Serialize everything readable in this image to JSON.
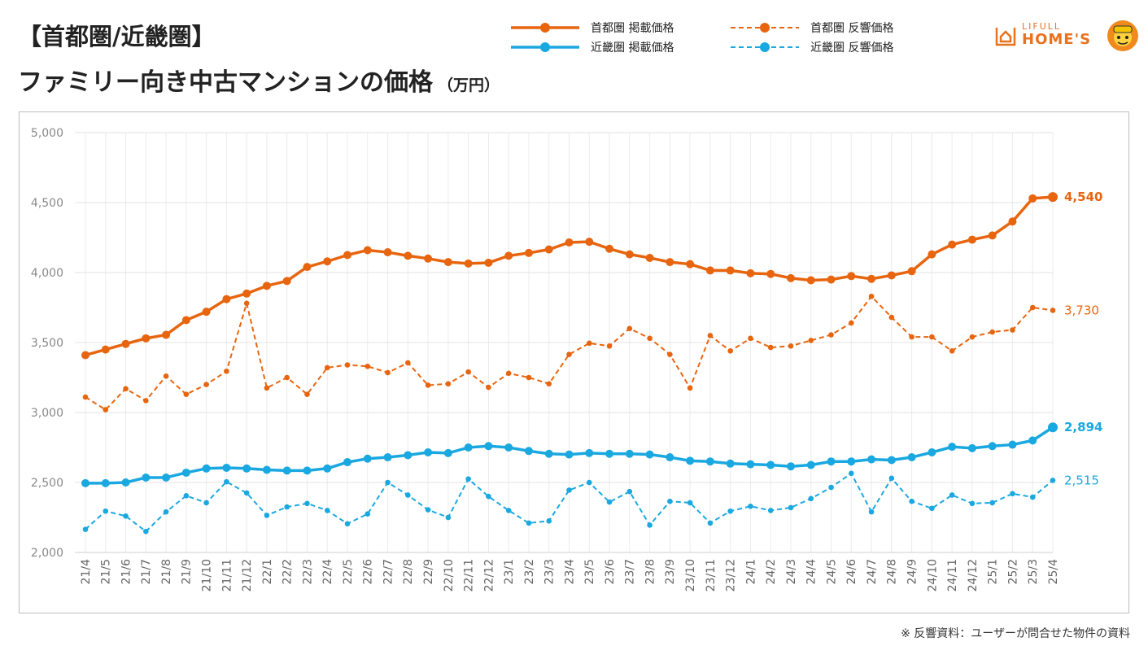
{
  "header": {
    "title_line1": "【首都圏/近畿圏】",
    "title_line2": "ファミリー向き中古マンションの価格",
    "title_unit": "（万円）"
  },
  "legend": {
    "items": [
      {
        "label": "首都圏 掲載価格",
        "color": "#e8650f",
        "style": "solid"
      },
      {
        "label": "首都圏 反響価格",
        "color": "#e8650f",
        "style": "dashed"
      },
      {
        "label": "近畿圏 掲載価格",
        "color": "#1aa8e0",
        "style": "solid"
      },
      {
        "label": "近畿圏 反響価格",
        "color": "#1aa8e0",
        "style": "dashed"
      }
    ]
  },
  "logo": {
    "line1": "LIFULL",
    "line2": "HOME'S",
    "icon": "house-icon"
  },
  "footnote": "※ 反響資料：ユーザーが問合せた物件の資料",
  "chart_data": {
    "type": "line",
    "categories": [
      "21/4",
      "21/5",
      "21/6",
      "21/7",
      "21/8",
      "21/9",
      "21/10",
      "21/11",
      "21/12",
      "22/1",
      "22/2",
      "22/3",
      "22/4",
      "22/5",
      "22/6",
      "22/7",
      "22/8",
      "22/9",
      "22/10",
      "22/11",
      "22/12",
      "23/1",
      "23/2",
      "23/3",
      "23/4",
      "23/5",
      "23/6",
      "23/7",
      "23/8",
      "23/9",
      "23/10",
      "23/11",
      "23/12",
      "24/1",
      "24/2",
      "24/3",
      "24/4",
      "24/5",
      "24/6",
      "24/7",
      "24/8",
      "24/9",
      "24/10",
      "24/11",
      "24/12",
      "25/1",
      "25/2",
      "25/3",
      "25/4"
    ],
    "ylim": [
      2000,
      5000
    ],
    "yticks": [
      "2,000",
      "2,500",
      "3,000",
      "3,500",
      "4,000",
      "4,500",
      "5,000"
    ],
    "grid": true,
    "series": [
      {
        "name": "首都圏 掲載価格",
        "color": "#e8650f",
        "dashed": false,
        "end_label": "4,540",
        "values": [
          3410,
          3450,
          3490,
          3530,
          3555,
          3660,
          3720,
          3810,
          3850,
          3905,
          3940,
          4040,
          4080,
          4125,
          4160,
          4145,
          4120,
          4100,
          4075,
          4065,
          4070,
          4120,
          4140,
          4165,
          4215,
          4220,
          4170,
          4130,
          4105,
          4075,
          4060,
          4015,
          4015,
          3995,
          3990,
          3960,
          3945,
          3950,
          3975,
          3955,
          3980,
          4010,
          4130,
          4200,
          4235,
          4265,
          4365,
          4530,
          4540
        ]
      },
      {
        "name": "首都圏 反響価格",
        "color": "#e8650f",
        "dashed": true,
        "end_label": "3,730",
        "values": [
          3110,
          3020,
          3170,
          3085,
          3260,
          3130,
          3200,
          3295,
          3780,
          3175,
          3250,
          3130,
          3320,
          3340,
          3330,
          3285,
          3355,
          3195,
          3205,
          3290,
          3180,
          3280,
          3250,
          3205,
          3415,
          3495,
          3475,
          3600,
          3530,
          3415,
          3175,
          3550,
          3440,
          3530,
          3465,
          3475,
          3515,
          3555,
          3640,
          3830,
          3680,
          3540,
          3540,
          3440,
          3540,
          3575,
          3590,
          3750,
          3730
        ]
      },
      {
        "name": "近畿圏 掲載価格",
        "color": "#1aa8e0",
        "dashed": false,
        "end_label": "2,894",
        "values": [
          2495,
          2495,
          2500,
          2535,
          2535,
          2570,
          2600,
          2605,
          2600,
          2590,
          2585,
          2585,
          2600,
          2645,
          2670,
          2680,
          2695,
          2715,
          2710,
          2750,
          2760,
          2750,
          2725,
          2705,
          2700,
          2710,
          2705,
          2705,
          2700,
          2680,
          2655,
          2650,
          2635,
          2630,
          2625,
          2615,
          2625,
          2650,
          2650,
          2665,
          2660,
          2680,
          2715,
          2755,
          2745,
          2760,
          2770,
          2800,
          2894
        ]
      },
      {
        "name": "近畿圏 反響価格",
        "color": "#1aa8e0",
        "dashed": true,
        "end_label": "2,515",
        "values": [
          2165,
          2295,
          2260,
          2150,
          2290,
          2405,
          2355,
          2505,
          2425,
          2265,
          2325,
          2350,
          2300,
          2205,
          2275,
          2500,
          2410,
          2305,
          2250,
          2525,
          2400,
          2300,
          2210,
          2225,
          2445,
          2500,
          2360,
          2435,
          2195,
          2365,
          2355,
          2210,
          2295,
          2330,
          2300,
          2320,
          2385,
          2465,
          2565,
          2290,
          2530,
          2365,
          2315,
          2410,
          2350,
          2355,
          2420,
          2395,
          2515
        ]
      }
    ]
  }
}
